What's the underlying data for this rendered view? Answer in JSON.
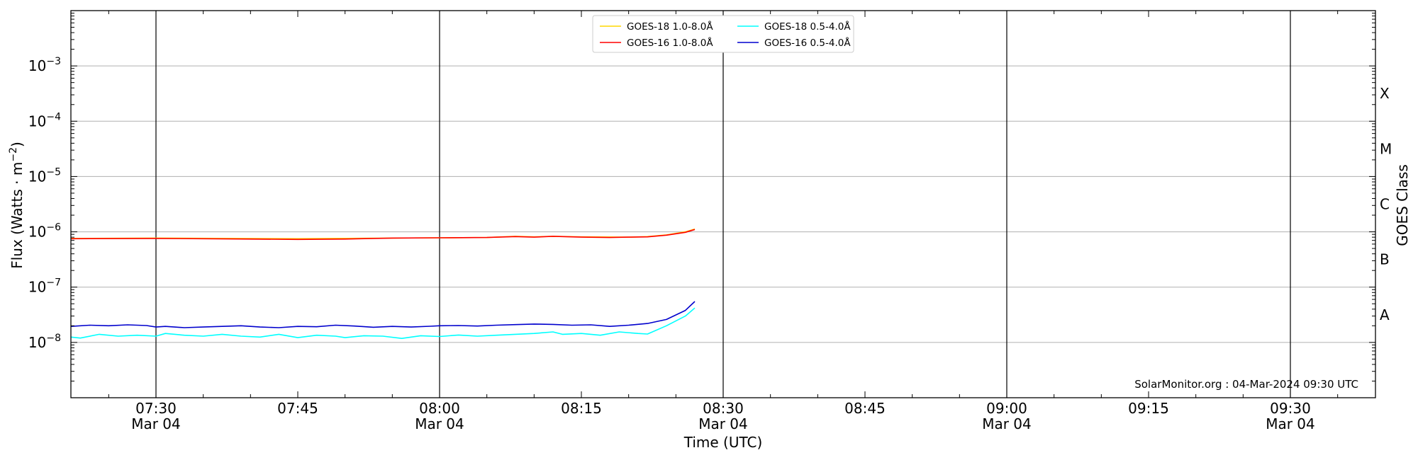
{
  "chart_data": {
    "type": "line",
    "title": "",
    "xlabel": "Time (UTC)",
    "ylabel": "Flux (Watts · m",
    "ylabel_sup": "−2",
    "ylabel_close": ")",
    "right_label": "GOES Class",
    "y_scale": "log",
    "ylim_exponents": [
      -9,
      -2
    ],
    "y_ticks": [
      {
        "base": "10",
        "exp": "−3",
        "value": -3
      },
      {
        "base": "10",
        "exp": "−4",
        "value": -4
      },
      {
        "base": "10",
        "exp": "−5",
        "value": -5
      },
      {
        "base": "10",
        "exp": "−6",
        "value": -6
      },
      {
        "base": "10",
        "exp": "−7",
        "value": -7
      },
      {
        "base": "10",
        "exp": "−8",
        "value": -8
      }
    ],
    "x_range_utc": [
      "07:21",
      "09:39"
    ],
    "x_ticks": [
      {
        "t": "07:30",
        "time": "07:30",
        "date": "Mar 04",
        "major": true
      },
      {
        "t": "07:45",
        "time": "07:45",
        "date": "",
        "major": false
      },
      {
        "t": "08:00",
        "time": "08:00",
        "date": "Mar 04",
        "major": true
      },
      {
        "t": "08:15",
        "time": "08:15",
        "date": "",
        "major": false
      },
      {
        "t": "08:30",
        "time": "08:30",
        "date": "Mar 04",
        "major": true
      },
      {
        "t": "08:45",
        "time": "08:45",
        "date": "",
        "major": false
      },
      {
        "t": "09:00",
        "time": "09:00",
        "date": "Mar 04",
        "major": true
      },
      {
        "t": "09:15",
        "time": "09:15",
        "date": "",
        "major": false
      },
      {
        "t": "09:30",
        "time": "09:30",
        "date": "Mar 04",
        "major": true
      }
    ],
    "goes_classes": [
      {
        "label": "X",
        "log_flux": -3.5
      },
      {
        "label": "M",
        "log_flux": -4.5
      },
      {
        "label": "C",
        "log_flux": -5.5
      },
      {
        "label": "B",
        "log_flux": -6.5
      },
      {
        "label": "A",
        "log_flux": -7.5
      }
    ],
    "grid": true,
    "legend_position": "top-center",
    "legend": [
      {
        "label": "GOES-18 1.0-8.0Å",
        "color": "#ffd700",
        "series": "g18_long"
      },
      {
        "label": "GOES-16 1.0-8.0Å",
        "color": "#ff0000",
        "series": "g16_long"
      },
      {
        "label": "GOES-18 0.5-4.0Å",
        "color": "#00ffff",
        "series": "g18_short"
      },
      {
        "label": "GOES-16 0.5-4.0Å",
        "color": "#0000cd",
        "series": "g16_short"
      }
    ],
    "series": [
      {
        "key": "g18_long",
        "color": "#ffd700",
        "x": [
          "07:21",
          "07:30",
          "07:45",
          "08:00",
          "08:05",
          "08:08",
          "08:10",
          "08:12",
          "08:15",
          "08:20",
          "08:22",
          "08:24",
          "08:26",
          "08:27"
        ],
        "values": [
          7.6e-07,
          7.7e-07,
          7.5e-07,
          7.8e-07,
          7.9e-07,
          8.3e-07,
          8.1e-07,
          8.3e-07,
          8.1e-07,
          8e-07,
          8.2e-07,
          8.8e-07,
          1e-06,
          1.12e-06
        ]
      },
      {
        "key": "g16_long",
        "color": "#ff0000",
        "x": [
          "07:21",
          "07:30",
          "07:40",
          "07:45",
          "07:50",
          "07:55",
          "08:00",
          "08:05",
          "08:08",
          "08:10",
          "08:12",
          "08:15",
          "08:18",
          "08:20",
          "08:22",
          "08:24",
          "08:26",
          "08:27"
        ],
        "values": [
          7.5e-07,
          7.6e-07,
          7.4e-07,
          7.3e-07,
          7.4e-07,
          7.7e-07,
          7.8e-07,
          7.9e-07,
          8.2e-07,
          8e-07,
          8.3e-07,
          8e-07,
          7.9e-07,
          8e-07,
          8.1e-07,
          8.7e-07,
          9.8e-07,
          1.1e-06
        ]
      },
      {
        "key": "g18_short",
        "color": "#00ffff",
        "x": [
          "07:21",
          "07:22",
          "07:24",
          "07:26",
          "07:28",
          "07:30",
          "07:31",
          "07:33",
          "07:35",
          "07:37",
          "07:39",
          "07:41",
          "07:43",
          "07:45",
          "07:47",
          "07:49",
          "07:50",
          "07:52",
          "07:54",
          "07:56",
          "07:58",
          "08:00",
          "08:02",
          "08:04",
          "08:06",
          "08:08",
          "08:10",
          "08:12",
          "08:13",
          "08:15",
          "08:17",
          "08:19",
          "08:21",
          "08:22",
          "08:24",
          "08:26",
          "08:27"
        ],
        "values": [
          1.25e-08,
          1.2e-08,
          1.4e-08,
          1.3e-08,
          1.35e-08,
          1.3e-08,
          1.45e-08,
          1.35e-08,
          1.3e-08,
          1.4e-08,
          1.3e-08,
          1.25e-08,
          1.4e-08,
          1.22e-08,
          1.35e-08,
          1.3e-08,
          1.22e-08,
          1.32e-08,
          1.3e-08,
          1.18e-08,
          1.32e-08,
          1.28e-08,
          1.36e-08,
          1.3e-08,
          1.35e-08,
          1.4e-08,
          1.45e-08,
          1.55e-08,
          1.4e-08,
          1.45e-08,
          1.35e-08,
          1.55e-08,
          1.45e-08,
          1.42e-08,
          2e-08,
          3e-08,
          4.2e-08
        ]
      },
      {
        "key": "g16_short",
        "color": "#0000cd",
        "x": [
          "07:21",
          "07:23",
          "07:25",
          "07:27",
          "07:29",
          "07:30",
          "07:31",
          "07:33",
          "07:35",
          "07:37",
          "07:39",
          "07:41",
          "07:43",
          "07:45",
          "07:47",
          "07:49",
          "07:51",
          "07:53",
          "07:55",
          "07:57",
          "07:59",
          "08:00",
          "08:02",
          "08:04",
          "08:06",
          "08:08",
          "08:10",
          "08:12",
          "08:14",
          "08:16",
          "08:18",
          "08:20",
          "08:22",
          "08:24",
          "08:26",
          "08:27"
        ],
        "values": [
          1.95e-08,
          2.05e-08,
          2e-08,
          2.08e-08,
          2.02e-08,
          1.9e-08,
          1.95e-08,
          1.85e-08,
          1.9e-08,
          1.95e-08,
          2e-08,
          1.9e-08,
          1.85e-08,
          1.95e-08,
          1.92e-08,
          2.05e-08,
          1.98e-08,
          1.88e-08,
          1.95e-08,
          1.9e-08,
          1.96e-08,
          2e-08,
          2.02e-08,
          1.98e-08,
          2.05e-08,
          2.1e-08,
          2.15e-08,
          2.12e-08,
          2.05e-08,
          2.08e-08,
          1.95e-08,
          2.05e-08,
          2.2e-08,
          2.6e-08,
          3.8e-08,
          5.5e-08
        ]
      }
    ],
    "annotation": "SolarMonitor.org : 04-Mar-2024 09:30 UTC"
  }
}
